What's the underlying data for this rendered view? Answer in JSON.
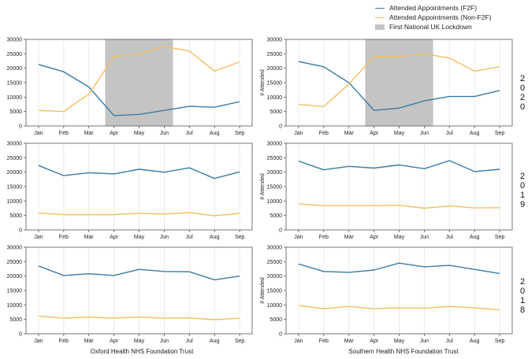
{
  "legend": {
    "f2f": "Attended Appointments (F2F)",
    "nonf2f": "Attended Appointments (Non-F2F)",
    "lockdown": "First National UK Lockdown"
  },
  "colors": {
    "f2f": "#3a7ca5",
    "nonf2f": "#f5be62",
    "lockdown": "#c4c4c4",
    "grid": "#e6e6e6",
    "axis": "#555555"
  },
  "columns": {
    "left": "Oxford Health NHS Foundation Trust",
    "right": "Southern Health NHS Foundation Trust"
  },
  "side_text": [
    "2\n0\n2\n0",
    "2\n0\n1\n9",
    "2\n0\n1\n8"
  ],
  "chart_data": [
    {
      "type": "line",
      "trust": "Oxford Health NHS Foundation Trust",
      "year_label": "2020",
      "categories": [
        "Jan",
        "Feb",
        "Mar",
        "Apr",
        "May",
        "Jun",
        "Jul",
        "Aug",
        "Sep"
      ],
      "ylim": [
        0,
        30000
      ],
      "yticks": [
        0,
        5000,
        10000,
        15000,
        20000,
        25000,
        30000
      ],
      "ylabel": "",
      "shade": [
        "Apr",
        "Jun"
      ],
      "series": [
        {
          "key": "f2f",
          "values": [
            21300,
            18800,
            13500,
            3600,
            4000,
            5400,
            6800,
            6500,
            8400
          ]
        },
        {
          "key": "nonf2f",
          "values": [
            5400,
            5000,
            11000,
            24000,
            25000,
            27500,
            26000,
            19000,
            22200
          ]
        }
      ]
    },
    {
      "type": "line",
      "trust": "Southern Health NHS Foundation Trust",
      "year_label": "2020",
      "categories": [
        "Jan",
        "Feb",
        "Mar",
        "Apr",
        "May",
        "Jun",
        "Jul",
        "Aug",
        "Sep"
      ],
      "ylim": [
        0,
        30000
      ],
      "yticks": [
        0,
        5000,
        10000,
        15000,
        20000,
        25000,
        30000
      ],
      "ylabel": "# Attended",
      "shade": [
        "Apr",
        "Jun"
      ],
      "series": [
        {
          "key": "f2f",
          "values": [
            22300,
            20500,
            15000,
            5400,
            6200,
            8700,
            10200,
            10200,
            12300
          ]
        },
        {
          "key": "nonf2f",
          "values": [
            7500,
            6700,
            14500,
            24000,
            24000,
            25000,
            23500,
            19000,
            20500
          ]
        }
      ]
    },
    {
      "type": "line",
      "trust": "Oxford Health NHS Foundation Trust",
      "year_label": "2019",
      "categories": [
        "Jan",
        "Feb",
        "Mar",
        "Apr",
        "May",
        "Jun",
        "Jul",
        "Aug",
        "Sep"
      ],
      "ylim": [
        0,
        30000
      ],
      "yticks": [
        0,
        5000,
        10000,
        15000,
        20000,
        25000,
        30000
      ],
      "ylabel": "",
      "series": [
        {
          "key": "f2f",
          "values": [
            22300,
            18800,
            19800,
            19400,
            21000,
            20000,
            21500,
            17800,
            20100
          ]
        },
        {
          "key": "nonf2f",
          "values": [
            5800,
            5300,
            5300,
            5300,
            5700,
            5500,
            6000,
            4900,
            5700
          ]
        }
      ]
    },
    {
      "type": "line",
      "trust": "Southern Health NHS Foundation Trust",
      "year_label": "2019",
      "categories": [
        "Jan",
        "Feb",
        "Mar",
        "Apr",
        "May",
        "Jun",
        "Jul",
        "Aug",
        "Sep"
      ],
      "ylim": [
        0,
        30000
      ],
      "yticks": [
        0,
        5000,
        10000,
        15000,
        20000,
        25000,
        30000
      ],
      "ylabel": "# Attended",
      "series": [
        {
          "key": "f2f",
          "values": [
            23800,
            20800,
            22000,
            21400,
            22500,
            21200,
            24000,
            20200,
            21000
          ]
        },
        {
          "key": "nonf2f",
          "values": [
            9000,
            8400,
            8400,
            8400,
            8500,
            7500,
            8300,
            7600,
            7700
          ]
        }
      ]
    },
    {
      "type": "line",
      "trust": "Oxford Health NHS Foundation Trust",
      "year_label": "2018",
      "categories": [
        "Jan",
        "Feb",
        "Mar",
        "Apr",
        "May",
        "Jun",
        "Jul",
        "Aug",
        "Sep"
      ],
      "ylim": [
        0,
        30000
      ],
      "yticks": [
        0,
        5000,
        10000,
        15000,
        20000,
        25000,
        30000
      ],
      "ylabel": "",
      "series": [
        {
          "key": "f2f",
          "values": [
            23500,
            20200,
            20800,
            20200,
            22300,
            21600,
            21500,
            18700,
            20000
          ]
        },
        {
          "key": "nonf2f",
          "values": [
            6200,
            5400,
            5800,
            5400,
            5800,
            5400,
            5500,
            4900,
            5400
          ]
        }
      ]
    },
    {
      "type": "line",
      "trust": "Southern Health NHS Foundation Trust",
      "year_label": "2018",
      "categories": [
        "Jan",
        "Feb",
        "Mar",
        "Apr",
        "May",
        "Jun",
        "Jul",
        "Aug",
        "Sep"
      ],
      "ylim": [
        0,
        30000
      ],
      "yticks": [
        0,
        5000,
        10000,
        15000,
        20000,
        25000,
        30000
      ],
      "ylabel": "# Attended",
      "series": [
        {
          "key": "f2f",
          "values": [
            24200,
            21600,
            21300,
            22100,
            24500,
            23200,
            23700,
            22300,
            20900
          ]
        },
        {
          "key": "nonf2f",
          "values": [
            9800,
            8700,
            9500,
            8700,
            9000,
            8900,
            9500,
            9000,
            8300
          ]
        }
      ]
    }
  ]
}
